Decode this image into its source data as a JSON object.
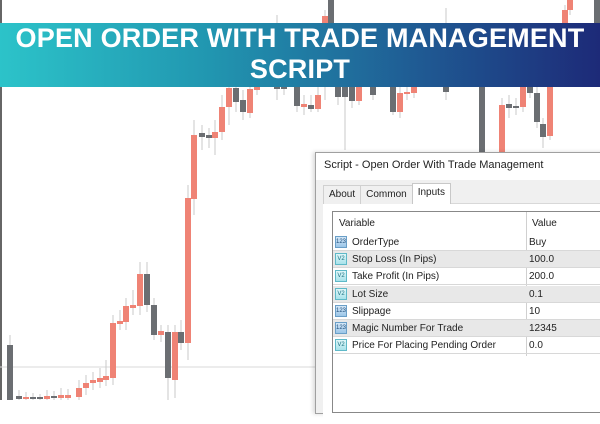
{
  "banner": {
    "line1": "OPEN ORDER WITH TRADE MANAGEMENT",
    "line2": "SCRIPT",
    "gradient_start": "#2cc3c9",
    "gradient_end": "#1d2a78"
  },
  "chart": {
    "bull_color": "#ef8375",
    "bear_color": "#6b6e72"
  },
  "dialog": {
    "title": "Script - Open Order With Trade Management",
    "tabs": [
      {
        "label": "About",
        "active": false
      },
      {
        "label": "Common",
        "active": false
      },
      {
        "label": "Inputs",
        "active": true
      }
    ],
    "table": {
      "headers": {
        "variable": "Variable",
        "value": "Value"
      },
      "rows": [
        {
          "icon": "integer-icon",
          "variable": "OrderType",
          "value": "Buy"
        },
        {
          "icon": "double-icon",
          "variable": "Stop Loss (In Pips)",
          "value": "100.0"
        },
        {
          "icon": "double-icon",
          "variable": "Take Profit (In Pips)",
          "value": "200.0"
        },
        {
          "icon": "double-icon",
          "variable": "Lot Size",
          "value": "0.1"
        },
        {
          "icon": "integer-icon",
          "variable": "Slippage",
          "value": "10"
        },
        {
          "icon": "integer-icon",
          "variable": "Magic Number For Trade",
          "value": "12345"
        },
        {
          "icon": "double-icon",
          "variable": "Price For Placing Pending Order",
          "value": "0.0"
        }
      ]
    }
  }
}
